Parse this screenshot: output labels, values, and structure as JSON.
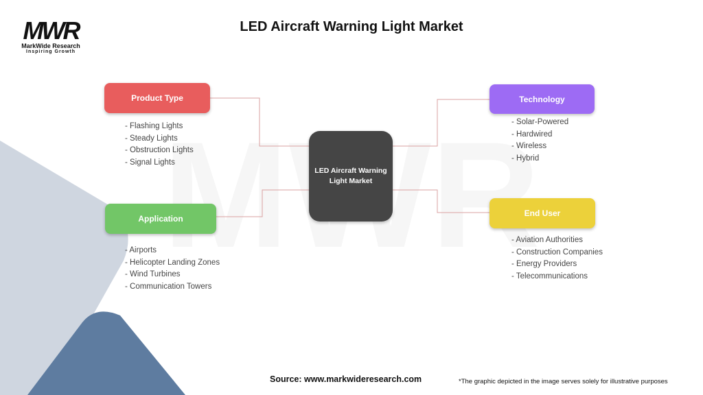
{
  "title": "LED Aircraft Warning Light Market",
  "logo": {
    "mark": "MWR",
    "name": "MarkWide Research",
    "tagline": "Inspiring Growth"
  },
  "center": {
    "label": "LED Aircraft Warning Light Market",
    "color": "#454545"
  },
  "categories": [
    {
      "label": "Product Type",
      "color": "#e85d5d",
      "items": [
        "- Flashing Lights",
        "- Steady Lights",
        "- Obstruction Lights",
        "- Signal Lights"
      ]
    },
    {
      "label": "Technology",
      "color": "#9d6bf4",
      "items": [
        "- Solar-Powered",
        "- Hardwired",
        "- Wireless",
        "- Hybrid"
      ]
    },
    {
      "label": "Application",
      "color": "#72c667",
      "items": [
        "- Airports",
        "- Helicopter Landing Zones",
        "- Wind Turbines",
        "- Communication Towers"
      ]
    },
    {
      "label": "End User",
      "color": "#ecd13a",
      "items": [
        "- Aviation Authorities",
        "- Construction Companies",
        "- Energy Providers",
        "- Telecommunications"
      ]
    }
  ],
  "connector_color": "#d9a0a0",
  "footer": {
    "source": "Source: www.markwideresearch.com",
    "disclaimer": "*The graphic depicted in the image serves solely for illustrative purposes"
  }
}
